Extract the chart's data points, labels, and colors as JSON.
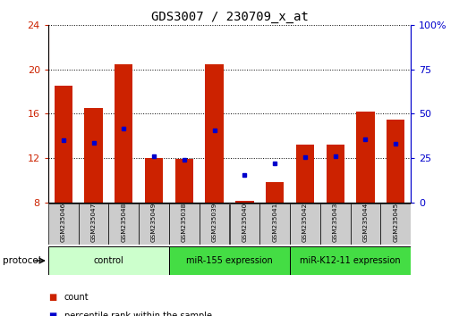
{
  "title": "GDS3007 / 230709_x_at",
  "samples": [
    "GSM235046",
    "GSM235047",
    "GSM235048",
    "GSM235049",
    "GSM235038",
    "GSM235039",
    "GSM235040",
    "GSM235041",
    "GSM235042",
    "GSM235043",
    "GSM235044",
    "GSM235045"
  ],
  "red_values": [
    18.5,
    16.5,
    20.5,
    12.0,
    11.9,
    20.5,
    8.1,
    9.8,
    13.2,
    13.2,
    16.2,
    15.5
  ],
  "blue_values": [
    13.6,
    13.4,
    14.7,
    12.2,
    11.8,
    14.5,
    10.5,
    11.5,
    12.1,
    12.2,
    13.7,
    13.3
  ],
  "ylim_left": [
    8,
    24
  ],
  "ylim_right": [
    0,
    100
  ],
  "yticks_left": [
    8,
    12,
    16,
    20,
    24
  ],
  "yticks_right": [
    0,
    25,
    50,
    75,
    100
  ],
  "ytick_labels_right": [
    "0",
    "25",
    "50",
    "75",
    "100%"
  ],
  "group_configs": [
    {
      "label": "control",
      "start": 0,
      "end": 3,
      "color": "#ccffcc"
    },
    {
      "label": "miR-155 expression",
      "start": 4,
      "end": 7,
      "color": "#44dd44"
    },
    {
      "label": "miR-K12-11 expression",
      "start": 8,
      "end": 11,
      "color": "#44dd44"
    }
  ],
  "protocol_label": "protocol",
  "bar_color": "#cc2200",
  "dot_color": "#0000cc",
  "bar_bottom": 8,
  "title_fontsize": 10,
  "axis_label_color_left": "#cc2200",
  "axis_label_color_right": "#0000cc",
  "legend_count_label": "count",
  "legend_pct_label": "percentile rank within the sample",
  "sample_box_color": "#cccccc",
  "bar_width": 0.6
}
